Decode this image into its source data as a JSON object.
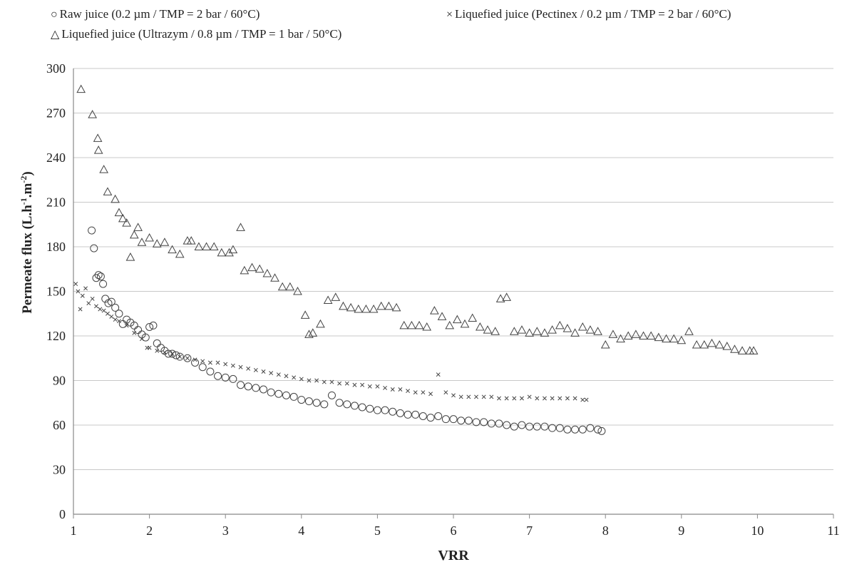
{
  "legend": {
    "raw": {
      "symbol": "○",
      "label": "Raw juice (0.2 µm / TMP = 2 bar / 60°C)"
    },
    "pectinex": {
      "symbol": "×",
      "label": "Liquefied juice (Pectinex  / 0.2 µm / TMP = 2 bar / 60°C)"
    },
    "ultrazym": {
      "symbol": "△",
      "label": "Liquefied juice (Ultrazym  / 0.8 µm / TMP = 1 bar / 50°C)"
    }
  },
  "chart_data": {
    "type": "scatter",
    "xlabel": "VRR",
    "ylabel": "Permeate flux (L.h⁻¹.m⁻²)",
    "ylabel_parts": [
      "Permeate flux (L.h",
      "-1",
      ".m",
      "-2",
      ")"
    ],
    "xlim": [
      1,
      11
    ],
    "ylim": [
      0,
      300
    ],
    "xticks": [
      1,
      2,
      3,
      4,
      5,
      6,
      7,
      8,
      9,
      10,
      11
    ],
    "yticks": [
      0,
      30,
      60,
      90,
      120,
      150,
      180,
      210,
      240,
      270,
      300
    ],
    "grid": "horizontal",
    "legend_position": "top",
    "colors": {
      "marker": "#444444",
      "grid": "#c8c8c8",
      "axis": "#888888"
    },
    "series": [
      {
        "name": "Raw juice (0.2 µm / TMP = 2 bar / 60°C)",
        "marker": "circle",
        "x": [
          1.24,
          1.27,
          1.3,
          1.33,
          1.36,
          1.39,
          1.42,
          1.46,
          1.5,
          1.55,
          1.6,
          1.65,
          1.7,
          1.75,
          1.8,
          1.85,
          1.9,
          1.95,
          2.0,
          2.05,
          2.1,
          2.15,
          2.2,
          2.25,
          2.3,
          2.35,
          2.4,
          2.5,
          2.6,
          2.7,
          2.8,
          2.9,
          3.0,
          3.1,
          3.2,
          3.3,
          3.4,
          3.5,
          3.6,
          3.7,
          3.8,
          3.9,
          4.0,
          4.1,
          4.2,
          4.3,
          4.4,
          4.5,
          4.6,
          4.7,
          4.8,
          4.9,
          5.0,
          5.1,
          5.2,
          5.3,
          5.4,
          5.5,
          5.6,
          5.7,
          5.8,
          5.9,
          6.0,
          6.1,
          6.2,
          6.3,
          6.4,
          6.5,
          6.6,
          6.7,
          6.8,
          6.9,
          7.0,
          7.1,
          7.2,
          7.3,
          7.4,
          7.5,
          7.6,
          7.7,
          7.8,
          7.9,
          7.95
        ],
        "y": [
          191,
          179,
          159,
          161,
          160,
          155,
          145,
          142,
          143,
          139,
          135,
          128,
          131,
          129,
          127,
          124,
          121,
          119,
          126,
          127,
          115,
          112,
          110,
          108,
          108,
          107,
          106,
          105,
          102,
          99,
          96,
          93,
          92,
          91,
          87,
          86,
          85,
          84,
          82,
          81,
          80,
          79,
          77,
          76,
          75,
          74,
          80,
          75,
          74,
          73,
          72,
          71,
          70,
          70,
          69,
          68,
          67,
          67,
          66,
          65,
          66,
          64,
          64,
          63,
          63,
          62,
          62,
          61,
          61,
          60,
          59,
          60,
          59,
          59,
          59,
          58,
          58,
          57,
          57,
          57,
          58,
          57,
          56
        ]
      },
      {
        "name": "Liquefied juice (Pectinex  / 0.2 µm / TMP = 2 bar / 60°C)",
        "marker": "x",
        "x": [
          1.03,
          1.06,
          1.09,
          1.12,
          1.16,
          1.2,
          1.25,
          1.3,
          1.35,
          1.4,
          1.45,
          1.5,
          1.55,
          1.6,
          1.7,
          1.8,
          1.9,
          1.97,
          2.0,
          2.1,
          2.2,
          2.3,
          2.4,
          2.5,
          2.6,
          2.7,
          2.8,
          2.9,
          3.0,
          3.1,
          3.2,
          3.3,
          3.4,
          3.5,
          3.6,
          3.7,
          3.8,
          3.9,
          4.0,
          4.1,
          4.2,
          4.3,
          4.4,
          4.5,
          4.6,
          4.7,
          4.8,
          4.9,
          5.0,
          5.1,
          5.2,
          5.3,
          5.4,
          5.5,
          5.6,
          5.7,
          5.8,
          5.9,
          6.0,
          6.1,
          6.2,
          6.3,
          6.4,
          6.5,
          6.6,
          6.7,
          6.8,
          6.9,
          7.0,
          7.1,
          7.2,
          7.3,
          7.4,
          7.5,
          7.6,
          7.7,
          7.75
        ],
        "y": [
          155,
          150,
          138,
          147,
          152,
          142,
          145,
          140,
          138,
          137,
          135,
          133,
          131,
          130,
          127,
          122,
          118,
          112,
          112,
          110,
          109,
          108,
          106,
          105,
          104,
          103,
          102,
          102,
          101,
          100,
          99,
          98,
          97,
          96,
          95,
          94,
          93,
          92,
          91,
          90,
          90,
          89,
          89,
          88,
          88,
          87,
          87,
          86,
          86,
          85,
          84,
          84,
          83,
          82,
          82,
          81,
          94,
          82,
          80,
          79,
          79,
          79,
          79,
          79,
          78,
          78,
          78,
          78,
          79,
          78,
          78,
          78,
          78,
          78,
          78,
          77,
          77
        ]
      },
      {
        "name": "Liquefied juice (Ultrazym  / 0.8 µm / TMP = 1 bar / 50°C)",
        "marker": "triangle",
        "x": [
          1.1,
          1.25,
          1.32,
          1.33,
          1.4,
          1.45,
          1.55,
          1.6,
          1.65,
          1.7,
          1.75,
          1.8,
          1.85,
          1.9,
          2.0,
          2.1,
          2.2,
          2.3,
          2.4,
          2.5,
          2.55,
          2.65,
          2.75,
          2.85,
          2.95,
          3.05,
          3.1,
          3.2,
          3.25,
          3.35,
          3.45,
          3.55,
          3.65,
          3.75,
          3.85,
          3.95,
          4.05,
          4.1,
          4.15,
          4.25,
          4.35,
          4.45,
          4.55,
          4.65,
          4.75,
          4.85,
          4.95,
          5.05,
          5.15,
          5.25,
          5.35,
          5.45,
          5.55,
          5.65,
          5.75,
          5.85,
          5.95,
          6.05,
          6.15,
          6.25,
          6.35,
          6.45,
          6.55,
          6.62,
          6.7,
          6.8,
          6.9,
          7.0,
          7.1,
          7.2,
          7.3,
          7.4,
          7.5,
          7.6,
          7.7,
          7.8,
          7.9,
          8.0,
          8.1,
          8.2,
          8.3,
          8.4,
          8.5,
          8.6,
          8.7,
          8.8,
          8.9,
          9.0,
          9.1,
          9.2,
          9.3,
          9.4,
          9.5,
          9.6,
          9.7,
          9.8,
          9.9,
          9.95
        ],
        "y": [
          286,
          269,
          253,
          245,
          232,
          217,
          212,
          203,
          199,
          196,
          173,
          188,
          193,
          183,
          186,
          182,
          183,
          178,
          175,
          184,
          184,
          180,
          180,
          180,
          176,
          176,
          178,
          193,
          164,
          166,
          165,
          162,
          159,
          153,
          153,
          150,
          134,
          121,
          122,
          128,
          144,
          146,
          140,
          139,
          138,
          138,
          138,
          140,
          140,
          139,
          127,
          127,
          127,
          126,
          137,
          133,
          127,
          131,
          128,
          132,
          126,
          124,
          123,
          145,
          146,
          123,
          124,
          122,
          123,
          122,
          124,
          127,
          125,
          122,
          126,
          124,
          123,
          114,
          121,
          118,
          120,
          121,
          120,
          120,
          119,
          118,
          118,
          117,
          123,
          114,
          114,
          115,
          114,
          113,
          111,
          110,
          110,
          110
        ]
      }
    ]
  }
}
